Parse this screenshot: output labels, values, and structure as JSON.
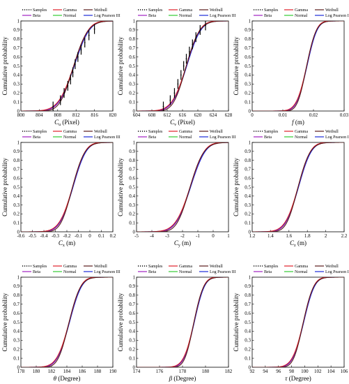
{
  "figure": {
    "ylabel": "Cumulative probability",
    "yticks": [
      "0",
      "0.1",
      "0.2",
      "0.3",
      "0.4",
      "0.5",
      "0.6",
      "0.7",
      "0.8",
      "0.9",
      "1"
    ]
  },
  "legend": {
    "entries": [
      {
        "name": "Samples",
        "color": "#000000",
        "style": "dotted"
      },
      {
        "name": "Gamma",
        "color": "#e0202a",
        "style": "solid"
      },
      {
        "name": "Weibull",
        "color": "#5a1a1a",
        "style": "solid"
      },
      {
        "name": "Beta",
        "color": "#a020c0",
        "style": "solid"
      },
      {
        "name": "Normal",
        "color": "#33cc33",
        "style": "solid"
      },
      {
        "name": "Log Pearson III",
        "color": "#1a2ad8",
        "style": "solid"
      }
    ]
  },
  "chart_data": [
    {
      "type": "line",
      "xlabel": "C_u (Pixel)",
      "xlim": [
        800,
        820
      ],
      "ylim": [
        0,
        1
      ],
      "xticks": [
        "800",
        "804",
        "808",
        "812",
        "816",
        "820"
      ],
      "mu": 811.5,
      "sigma": 2.6,
      "samples": [
        [
          807.0,
          0.05
        ],
        [
          808.6,
          0.12
        ],
        [
          809.4,
          0.2
        ],
        [
          810.2,
          0.28
        ],
        [
          810.8,
          0.35
        ],
        [
          811.3,
          0.43
        ],
        [
          811.8,
          0.52
        ],
        [
          812.4,
          0.6
        ],
        [
          813.1,
          0.68
        ],
        [
          813.9,
          0.76
        ],
        [
          814.8,
          0.84
        ],
        [
          816.0,
          0.91
        ]
      ]
    },
    {
      "type": "line",
      "xlabel": "C_v (Pixel)",
      "xlim": [
        604,
        628
      ],
      "ylim": [
        0,
        1
      ],
      "xticks": [
        "604",
        "608",
        "612",
        "616",
        "620",
        "624",
        "628"
      ],
      "mu": 617.0,
      "sigma": 2.9,
      "samples": [
        [
          611.0,
          0.05
        ],
        [
          612.8,
          0.12
        ],
        [
          613.9,
          0.2
        ],
        [
          614.8,
          0.3
        ],
        [
          615.6,
          0.4
        ],
        [
          616.3,
          0.5
        ],
        [
          617.0,
          0.58
        ],
        [
          617.8,
          0.66
        ],
        [
          618.6,
          0.74
        ],
        [
          619.5,
          0.82
        ],
        [
          620.6,
          0.9
        ],
        [
          622.0,
          0.95
        ]
      ]
    },
    {
      "type": "line",
      "xlabel": "f (m)",
      "xlim": [
        0,
        0.03
      ],
      "ylim": [
        0,
        1
      ],
      "xticks": [
        "0",
        "0.01",
        "0.02",
        "0.03"
      ],
      "mu": 0.0178,
      "sigma": 0.0026,
      "samples": []
    },
    {
      "type": "line",
      "xlabel": "C_x (m)",
      "xlim": [
        -0.6,
        0.2
      ],
      "ylim": [
        0,
        1
      ],
      "xticks": [
        "-0.6",
        "-0.5",
        "-0.4",
        "-0.3",
        "-0.2",
        "-0.1",
        "0",
        "0.1",
        "0.2"
      ],
      "mu": -0.15,
      "sigma": 0.09,
      "samples": []
    },
    {
      "type": "line",
      "xlabel": "C_y (m)",
      "xlim": [
        -5,
        1
      ],
      "ylim": [
        0,
        1
      ],
      "xticks": [
        "-5",
        "-4",
        "-3",
        "-2",
        "-1",
        "0",
        "1"
      ],
      "mu": -1.5,
      "sigma": 0.75,
      "samples": []
    },
    {
      "type": "line",
      "xlabel": "C_z (m)",
      "xlim": [
        1.2,
        2.2
      ],
      "ylim": [
        0,
        1
      ],
      "xticks": [
        "1.2",
        "1.4",
        "1.6",
        "1.8",
        "2",
        "2.2"
      ],
      "mu": 1.7,
      "sigma": 0.11,
      "samples": []
    },
    {
      "type": "line",
      "xlabel": "θ (Degree)",
      "xlim": [
        178,
        190
      ],
      "ylim": [
        0,
        1
      ],
      "xticks": [
        "178",
        "180",
        "182",
        "184",
        "186",
        "188",
        "190"
      ],
      "mu": 184.3,
      "sigma": 1.25,
      "samples": []
    },
    {
      "type": "line",
      "xlabel": "β (Degree)",
      "xlim": [
        174,
        182
      ],
      "ylim": [
        0,
        1
      ],
      "xticks": [
        "174",
        "176",
        "178",
        "180",
        "182"
      ],
      "mu": 179.0,
      "sigma": 0.7,
      "samples": []
    },
    {
      "type": "line",
      "xlabel": "τ (Degree)",
      "xlim": [
        92,
        106
      ],
      "ylim": [
        0,
        1
      ],
      "xticks": [
        "92",
        "94",
        "96",
        "98",
        "100",
        "102",
        "104",
        "106"
      ],
      "mu": 99.8,
      "sigma": 1.3,
      "samples": []
    }
  ]
}
